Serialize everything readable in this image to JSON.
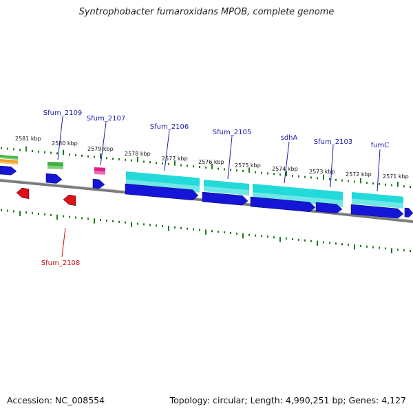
{
  "title": "Syntrophobacter fumaroxidans MPOB, complete genome",
  "footer": {
    "accession": "Accession: NC_008554",
    "summary": "Topology: circular; Length: 4,990,251 bp; Genes: 4,127"
  },
  "colors": {
    "backbone": "#7a7a7a",
    "ticks": "#1e7a1e",
    "forward_label": "#1a1aa8",
    "reverse_label": "#cc1010",
    "cds_blue": "#1515d8",
    "cyan": "#22dada",
    "green": "#3cb43c",
    "orange": "#f0a020",
    "magenta": "#e0208a",
    "red": "#e01010"
  },
  "kbp_labels": [
    "2581 kbp",
    "2580 kbp",
    "2579 kbp",
    "2578 kbp",
    "2577 kbp",
    "2576 kbp",
    "2575 kbp",
    "2574 kbp",
    "2573 kbp",
    "2572 kbp",
    "2571 kbp"
  ],
  "gene_labels": [
    {
      "text": "Sfum_2109",
      "strand": "forward"
    },
    {
      "text": "Sfum_2107",
      "strand": "forward"
    },
    {
      "text": "Sfum_2106",
      "strand": "forward"
    },
    {
      "text": "Sfum_2105",
      "strand": "forward"
    },
    {
      "text": "sdhA",
      "strand": "forward"
    },
    {
      "text": "Sfum_2103",
      "strand": "forward"
    },
    {
      "text": "fumC",
      "strand": "forward"
    },
    {
      "text": "Sfum_2108",
      "strand": "reverse"
    }
  ]
}
